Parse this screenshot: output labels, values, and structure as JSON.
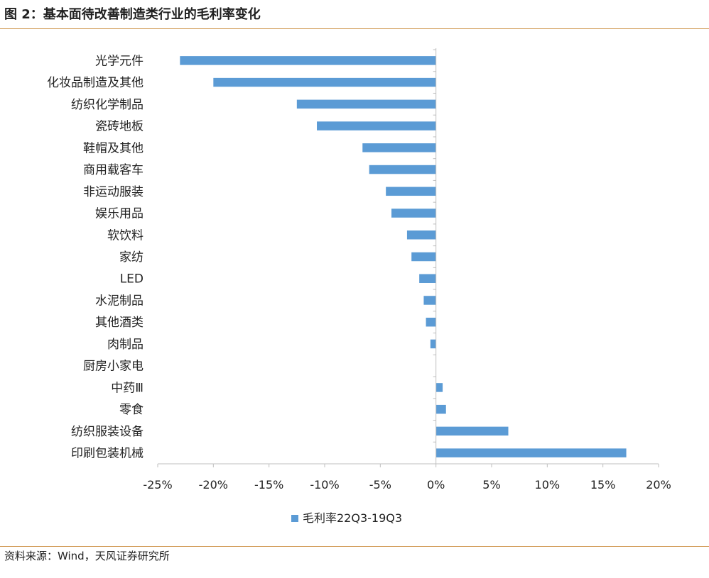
{
  "title": "图 2：基本面待改善制造类行业的毛利率变化",
  "source": "资料来源：Wind，天风证券研究所",
  "colors": {
    "bar": "#5b9bd5",
    "axis": "#bfbfbf",
    "rule": "#d19a55"
  },
  "chart_data": {
    "type": "bar",
    "orientation": "horizontal",
    "categories": [
      "光学元件",
      "化妆品制造及其他",
      "纺织化学制品",
      "瓷砖地板",
      "鞋帽及其他",
      "商用载客车",
      "非运动服装",
      "娱乐用品",
      "软饮料",
      "家纺",
      "LED",
      "水泥制品",
      "其他酒类",
      "肉制品",
      "厨房小家电",
      "中药Ⅲ",
      "零食",
      "纺织服装设备",
      "印刷包装机械"
    ],
    "series": [
      {
        "name": "毛利率22Q3-19Q3",
        "values": [
          -23.0,
          -20.0,
          -12.5,
          -10.7,
          -6.6,
          -6.0,
          -4.5,
          -4.0,
          -2.6,
          -2.2,
          -1.5,
          -1.1,
          -0.9,
          -0.5,
          0.0,
          0.6,
          0.9,
          6.5,
          17.1
        ]
      }
    ],
    "xlim": [
      -25,
      20
    ],
    "xticks": [
      -25,
      -20,
      -15,
      -10,
      -5,
      0,
      5,
      10,
      15,
      20
    ],
    "xtick_labels": [
      "-25%",
      "-20%",
      "-15%",
      "-10%",
      "-5%",
      "0%",
      "5%",
      "10%",
      "15%",
      "20%"
    ],
    "grid": false,
    "legend_position": "bottom"
  }
}
